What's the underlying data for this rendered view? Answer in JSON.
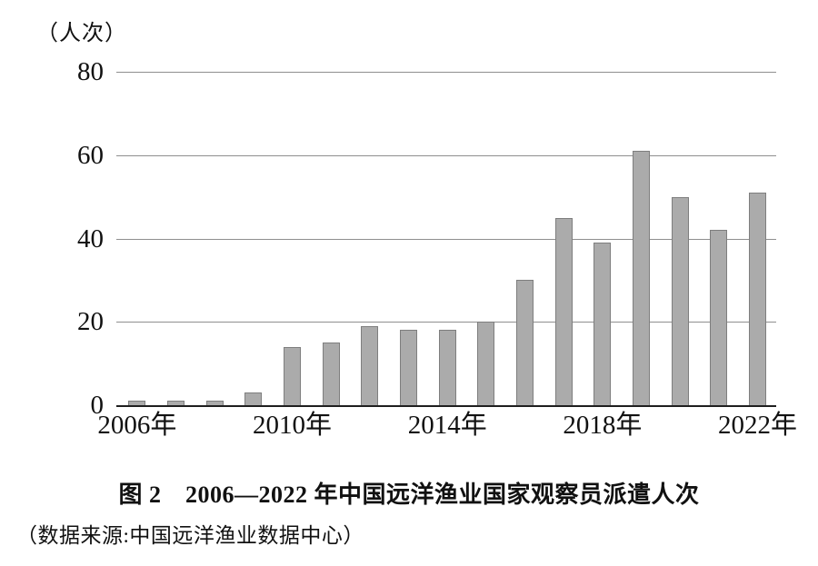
{
  "figure": {
    "title": "图 2　2006—2022 年中国远洋渔业国家观察员派遣人次",
    "source": "（数据来源:中国远洋渔业数据中心）",
    "unit_label": "（人次）"
  },
  "chart_data": {
    "type": "bar",
    "title": "图 2　2006—2022 年中国远洋渔业国家观察员派遣人次",
    "source": "（数据来源:中国远洋渔业数据中心）",
    "unit_label": "（人次）",
    "xlabel": "",
    "ylabel": "（人次）",
    "categories": [
      "2006",
      "2007",
      "2008",
      "2009",
      "2010",
      "2011",
      "2012",
      "2013",
      "2014",
      "2015",
      "2016",
      "2017",
      "2018",
      "2019",
      "2020",
      "2021",
      "2022"
    ],
    "values": [
      1,
      1,
      1,
      3,
      14,
      15,
      19,
      18,
      18,
      20,
      30,
      45,
      39,
      61,
      50,
      42,
      51
    ],
    "x_tick_labels": [
      "2006年",
      "2010年",
      "2014年",
      "2018年",
      "2022年"
    ],
    "x_tick_positions": [
      0,
      4,
      8,
      12,
      16
    ],
    "y_ticks": [
      0,
      20,
      40,
      60,
      80
    ],
    "ylim": [
      0,
      80
    ],
    "grid": true,
    "legend": false,
    "colors": {
      "bar_fill": "#ababab",
      "bar_border": "#7e7e7e",
      "gridline": "#8f8f8f",
      "axis": "#1f1f1f",
      "text": "#111111",
      "background": "#ffffff"
    }
  }
}
